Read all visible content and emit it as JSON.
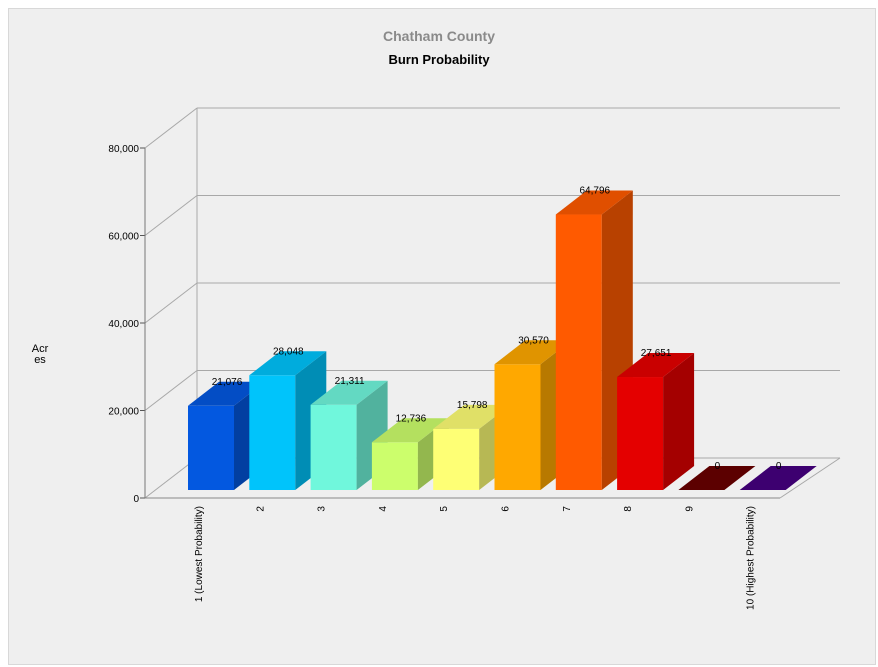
{
  "chart_data": {
    "type": "bar",
    "title": "Chatham County",
    "subtitle": "Burn Probability",
    "ylabel": "Acres",
    "xlabel": "",
    "ylim": [
      0,
      80000
    ],
    "yticks": [
      "0",
      "20,000",
      "40,000",
      "60,000",
      "80,000"
    ],
    "grid": true,
    "three_d": true,
    "categories": [
      "1 (Lowest Probability)",
      "2",
      "3",
      "4",
      "5",
      "6",
      "7",
      "8",
      "9",
      "10 (Highest Probability)"
    ],
    "values": [
      21076,
      28048,
      21311,
      12736,
      15798,
      30570,
      64796,
      27651,
      0,
      0
    ],
    "value_labels": [
      "21,076",
      "28,048",
      "21,311",
      "12,736",
      "15,798",
      "30,570",
      "64,796",
      "27,651",
      "0",
      "0"
    ],
    "colors": [
      "#0358e0",
      "#00c4fb",
      "#70f7dc",
      "#ccfe6c",
      "#feff75",
      "#ffa800",
      "#ff5a00",
      "#e40000",
      "#5c0000",
      "#3d0070"
    ]
  }
}
